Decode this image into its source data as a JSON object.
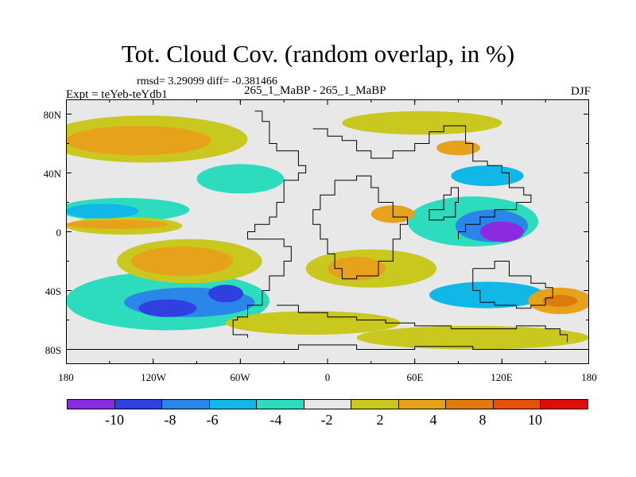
{
  "title": "Tot. Cloud Cov. (random overlap, in %)",
  "stats": "rmsd= 3.29099 diff= -0.381466",
  "expt": "Expt = teYeb-teYdb1",
  "period": "265_1_MaBP - 265_1_MaBP",
  "season": "DJF",
  "axes": {
    "y_ticks": [
      "80N",
      "40N",
      "0",
      "40S",
      "80S"
    ],
    "y_values": [
      80,
      40,
      0,
      -40,
      -80
    ],
    "x_ticks": [
      "180",
      "120W",
      "60W",
      "0",
      "60E",
      "120E",
      "180"
    ],
    "x_values": [
      -180,
      -120,
      -60,
      0,
      60,
      120,
      180
    ]
  },
  "colorbar": {
    "labels": [
      "-10",
      "-8",
      "-6",
      "-4",
      "-2",
      "2",
      "4",
      "8",
      "10"
    ],
    "colors": [
      "#8a2be2",
      "#2f3fe0",
      "#2a86e8",
      "#10b8e8",
      "#2cdcbc",
      "#e8e8e8",
      "#c8c81e",
      "#e6a21a",
      "#e07a0c",
      "#e6500a",
      "#e00c0c"
    ]
  },
  "chart_data": {
    "type": "heatmap",
    "title": "Tot. Cloud Cov. (random overlap, in %)",
    "xlabel": "",
    "ylabel": "",
    "xlim": [
      -180,
      180
    ],
    "ylim": [
      -90,
      90
    ],
    "contour_levels": [
      -10,
      -8,
      -6,
      -4,
      -2,
      2,
      4,
      8,
      10
    ],
    "regions": [
      {
        "level": 4,
        "lon": -130,
        "lat": 62,
        "rlon": 50,
        "rlat": 10
      },
      {
        "level": 2,
        "lon": -125,
        "lat": 63,
        "rlon": 70,
        "rlat": 16
      },
      {
        "level": 4,
        "lon": 90,
        "lat": 57,
        "rlon": 15,
        "rlat": 5
      },
      {
        "level": 2,
        "lon": 65,
        "lat": 74,
        "rlon": 55,
        "rlat": 8
      },
      {
        "level": -4,
        "lon": 110,
        "lat": 38,
        "rlon": 25,
        "rlat": 7
      },
      {
        "level": -2,
        "lon": -60,
        "lat": 36,
        "rlon": 30,
        "rlat": 10
      },
      {
        "level": -4,
        "lon": -155,
        "lat": 14,
        "rlon": 25,
        "rlat": 5
      },
      {
        "level": -2,
        "lon": -140,
        "lat": 15,
        "rlon": 45,
        "rlat": 8
      },
      {
        "level": 4,
        "lon": -145,
        "lat": 5,
        "rlon": 35,
        "rlat": 3
      },
      {
        "level": 2,
        "lon": -140,
        "lat": 4,
        "rlon": 40,
        "rlat": 6
      },
      {
        "level": 4,
        "lon": 45,
        "lat": 12,
        "rlon": 15,
        "rlat": 6
      },
      {
        "level": -10,
        "lon": 120,
        "lat": 0,
        "rlon": 15,
        "rlat": 7
      },
      {
        "level": -6,
        "lon": 113,
        "lat": 4,
        "rlon": 25,
        "rlat": 11
      },
      {
        "level": -2,
        "lon": 100,
        "lat": 7,
        "rlon": 45,
        "rlat": 17
      },
      {
        "level": 4,
        "lon": -100,
        "lat": -20,
        "rlon": 35,
        "rlat": 10
      },
      {
        "level": 2,
        "lon": -95,
        "lat": -20,
        "rlon": 50,
        "rlat": 15
      },
      {
        "level": 4,
        "lon": 20,
        "lat": -25,
        "rlon": 20,
        "rlat": 8
      },
      {
        "level": 2,
        "lon": 30,
        "lat": -25,
        "rlon": 45,
        "rlat": 13
      },
      {
        "level": -8,
        "lon": -70,
        "lat": -42,
        "rlon": 12,
        "rlat": 6
      },
      {
        "level": -8,
        "lon": -110,
        "lat": -52,
        "rlon": 20,
        "rlat": 6
      },
      {
        "level": -6,
        "lon": -95,
        "lat": -48,
        "rlon": 45,
        "rlat": 10
      },
      {
        "level": -2,
        "lon": -110,
        "lat": -47,
        "rlon": 70,
        "rlat": 20
      },
      {
        "level": 8,
        "lon": 160,
        "lat": -47,
        "rlon": 12,
        "rlat": 4
      },
      {
        "level": 4,
        "lon": 160,
        "lat": -47,
        "rlon": 22,
        "rlat": 9
      },
      {
        "level": -4,
        "lon": 110,
        "lat": -43,
        "rlon": 40,
        "rlat": 9
      },
      {
        "level": 2,
        "lon": -10,
        "lat": -62,
        "rlon": 60,
        "rlat": 8
      },
      {
        "level": 2,
        "lon": 100,
        "lat": -72,
        "rlon": 80,
        "rlat": 8
      }
    ]
  }
}
